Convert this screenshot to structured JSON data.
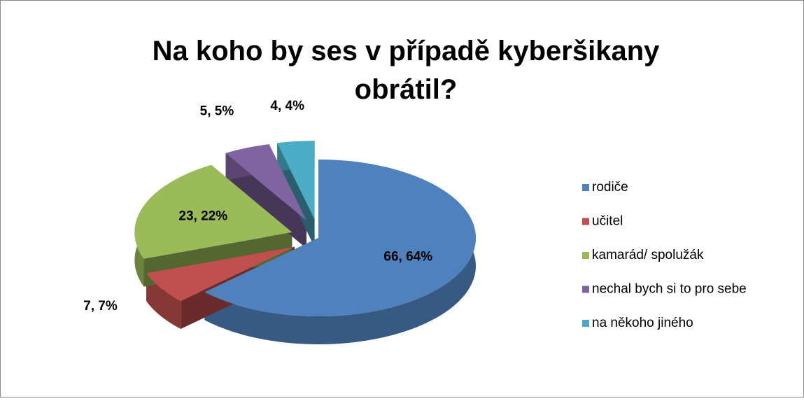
{
  "chart_data": {
    "type": "pie",
    "title": "Na koho by ses v případě kyberšikany obrátil?",
    "categories": [
      "rodiče",
      "učitel",
      "kamarád/ spolužák",
      "nechal  bych si to pro sebe",
      "na někoho jiného"
    ],
    "values": [
      66,
      7,
      23,
      5,
      4
    ],
    "value_labels": [
      "66, 64%",
      "7, 7%",
      "23, 22%",
      "5, 5%",
      "4, 4%"
    ],
    "colors": [
      "#4f81bd",
      "#c0504d",
      "#9bbb59",
      "#8064a2",
      "#4bacc6"
    ],
    "legend": "right"
  }
}
